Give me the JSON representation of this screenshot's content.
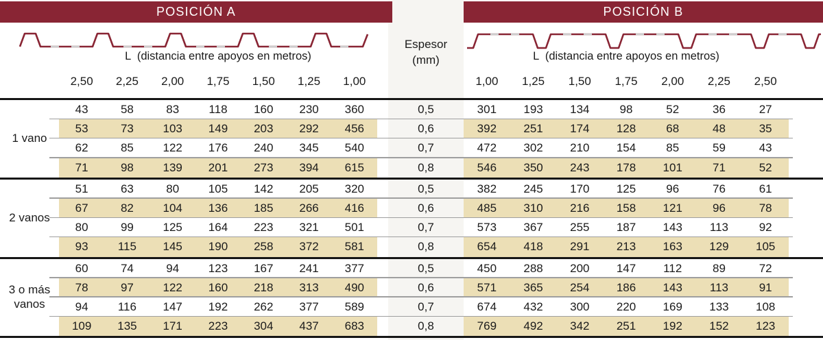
{
  "colors": {
    "banner_red": "#892534",
    "profile_line_red": "#892534",
    "stripe_beige": "#ecdfb6",
    "espesor_band_gray": "#f6f5f2",
    "thick_rule": "#161616",
    "thin_rule": "#9f9f9f",
    "text": "#1b1b1b"
  },
  "icons": {
    "profile_a": "rib-profile-up-icon",
    "profile_b": "rib-profile-down-icon"
  },
  "header": {
    "position_a_title": "POSICIÓN A",
    "position_b_title": "POSICIÓN B",
    "l_label_a": "L  (distancia entre apoyos en metros)",
    "l_label_b": "L  (distancia entre apoyos en metros)",
    "espesor_label": "Espesor",
    "espesor_unit": "(mm)",
    "spans_a": [
      "2,50",
      "2,25",
      "2,00",
      "1,75",
      "1,50",
      "1,25",
      "1,00"
    ],
    "spans_b": [
      "1,00",
      "1,25",
      "1,50",
      "1,75",
      "2,00",
      "2,25",
      "2,50"
    ]
  },
  "table": {
    "groups": [
      {
        "label": "1 vano",
        "rows": [
          {
            "espesor": "0,5",
            "a": [
              43,
              58,
              83,
              118,
              160,
              230,
              360
            ],
            "b": [
              301,
              193,
              134,
              98,
              52,
              36,
              27
            ]
          },
          {
            "espesor": "0,6",
            "a": [
              53,
              73,
              103,
              149,
              203,
              292,
              456
            ],
            "b": [
              392,
              251,
              174,
              128,
              68,
              48,
              35
            ]
          },
          {
            "espesor": "0,7",
            "a": [
              62,
              85,
              122,
              176,
              240,
              345,
              540
            ],
            "b": [
              472,
              302,
              210,
              154,
              85,
              59,
              43
            ]
          },
          {
            "espesor": "0,8",
            "a": [
              71,
              98,
              139,
              201,
              273,
              394,
              615
            ],
            "b": [
              546,
              350,
              243,
              178,
              101,
              71,
              52
            ]
          }
        ]
      },
      {
        "label": "2 vanos",
        "rows": [
          {
            "espesor": "0,5",
            "a": [
              51,
              63,
              80,
              105,
              142,
              205,
              320
            ],
            "b": [
              382,
              245,
              170,
              125,
              96,
              76,
              61
            ]
          },
          {
            "espesor": "0,6",
            "a": [
              67,
              82,
              104,
              136,
              185,
              266,
              416
            ],
            "b": [
              485,
              310,
              216,
              158,
              121,
              96,
              78
            ]
          },
          {
            "espesor": "0,7",
            "a": [
              80,
              99,
              125,
              164,
              223,
              321,
              501
            ],
            "b": [
              573,
              367,
              255,
              187,
              143,
              113,
              92
            ]
          },
          {
            "espesor": "0,8",
            "a": [
              93,
              115,
              145,
              190,
              258,
              372,
              581
            ],
            "b": [
              654,
              418,
              291,
              213,
              163,
              129,
              105
            ]
          }
        ]
      },
      {
        "label": "3 o más vanos",
        "rows": [
          {
            "espesor": "0,5",
            "a": [
              60,
              74,
              94,
              123,
              167,
              241,
              377
            ],
            "b": [
              450,
              288,
              200,
              147,
              112,
              89,
              72
            ]
          },
          {
            "espesor": "0,6",
            "a": [
              78,
              97,
              122,
              160,
              218,
              313,
              490
            ],
            "b": [
              571,
              365,
              254,
              186,
              143,
              113,
              91
            ]
          },
          {
            "espesor": "0,7",
            "a": [
              94,
              116,
              147,
              192,
              262,
              377,
              589
            ],
            "b": [
              674,
              432,
              300,
              220,
              169,
              133,
              108
            ]
          },
          {
            "espesor": "0,8",
            "a": [
              109,
              135,
              171,
              223,
              304,
              437,
              683
            ],
            "b": [
              769,
              492,
              342,
              251,
              192,
              152,
              123
            ]
          }
        ]
      }
    ]
  }
}
